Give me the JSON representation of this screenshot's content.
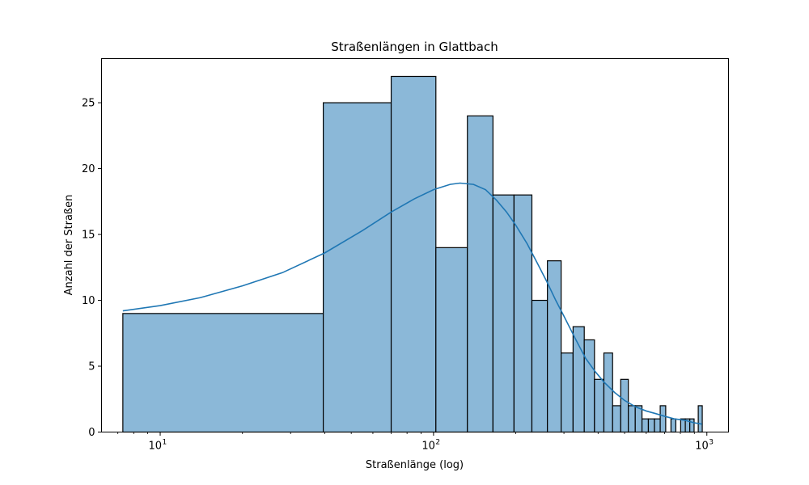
{
  "chart_data": {
    "type": "bar",
    "title": "Straßenlängen in Glattbach",
    "xlabel": "Straßenlänge (log)",
    "ylabel": "Anzahl der Straßen",
    "x_scale": "log",
    "xlim": [
      6.1,
      1200
    ],
    "ylim": [
      0,
      28.35
    ],
    "y_ticks": [
      0,
      5,
      10,
      15,
      20,
      25
    ],
    "x_ticks": [
      {
        "value": 10,
        "base": "10",
        "exp": "1"
      },
      {
        "value": 100,
        "base": "10",
        "exp": "2"
      },
      {
        "value": 1000,
        "base": "10",
        "exp": "3"
      }
    ],
    "bar_color": "#8bb8d8",
    "edge_color": "#000000",
    "kde_color": "#1f77b4",
    "grid": false,
    "bins": [
      {
        "x0": 7.3,
        "x1": 39.5,
        "count": 9
      },
      {
        "x0": 39.5,
        "x1": 70,
        "count": 25
      },
      {
        "x0": 70,
        "x1": 102,
        "count": 27
      },
      {
        "x0": 102,
        "x1": 133,
        "count": 14
      },
      {
        "x0": 133,
        "x1": 165,
        "count": 24
      },
      {
        "x0": 165,
        "x1": 197,
        "count": 18
      },
      {
        "x0": 197,
        "x1": 229,
        "count": 18
      },
      {
        "x0": 229,
        "x1": 261,
        "count": 10
      },
      {
        "x0": 261,
        "x1": 293,
        "count": 13
      },
      {
        "x0": 293,
        "x1": 324,
        "count": 6
      },
      {
        "x0": 324,
        "x1": 356,
        "count": 8
      },
      {
        "x0": 356,
        "x1": 388,
        "count": 7
      },
      {
        "x0": 388,
        "x1": 420,
        "count": 4
      },
      {
        "x0": 420,
        "x1": 452,
        "count": 6
      },
      {
        "x0": 452,
        "x1": 484,
        "count": 2
      },
      {
        "x0": 484,
        "x1": 516,
        "count": 4
      },
      {
        "x0": 516,
        "x1": 547,
        "count": 2
      },
      {
        "x0": 547,
        "x1": 579,
        "count": 2
      },
      {
        "x0": 579,
        "x1": 611,
        "count": 1
      },
      {
        "x0": 611,
        "x1": 643,
        "count": 1
      },
      {
        "x0": 643,
        "x1": 675,
        "count": 1
      },
      {
        "x0": 675,
        "x1": 707,
        "count": 2
      },
      {
        "x0": 707,
        "x1": 739,
        "count": 0
      },
      {
        "x0": 739,
        "x1": 770,
        "count": 1
      },
      {
        "x0": 770,
        "x1": 802,
        "count": 0
      },
      {
        "x0": 802,
        "x1": 834,
        "count": 1
      },
      {
        "x0": 834,
        "x1": 866,
        "count": 1
      },
      {
        "x0": 866,
        "x1": 898,
        "count": 1
      },
      {
        "x0": 898,
        "x1": 930,
        "count": 0
      },
      {
        "x0": 930,
        "x1": 962,
        "count": 2
      }
    ],
    "kde": {
      "x": [
        7.3,
        10,
        14,
        20,
        28,
        40,
        55,
        70,
        85,
        100,
        115,
        125,
        140,
        155,
        170,
        185,
        200,
        220,
        240,
        260,
        280,
        300,
        330,
        360,
        390,
        420,
        460,
        500,
        550,
        600,
        650,
        700,
        760,
        830,
        900,
        960
      ],
      "y": [
        9.2,
        9.6,
        10.2,
        11.1,
        12.1,
        13.6,
        15.3,
        16.7,
        17.7,
        18.4,
        18.8,
        18.9,
        18.8,
        18.4,
        17.6,
        16.7,
        15.7,
        14.3,
        12.8,
        11.4,
        10.0,
        8.8,
        7.1,
        5.6,
        4.6,
        3.8,
        3.0,
        2.4,
        1.9,
        1.6,
        1.4,
        1.2,
        1.0,
        0.9,
        0.7,
        0.6
      ]
    }
  }
}
